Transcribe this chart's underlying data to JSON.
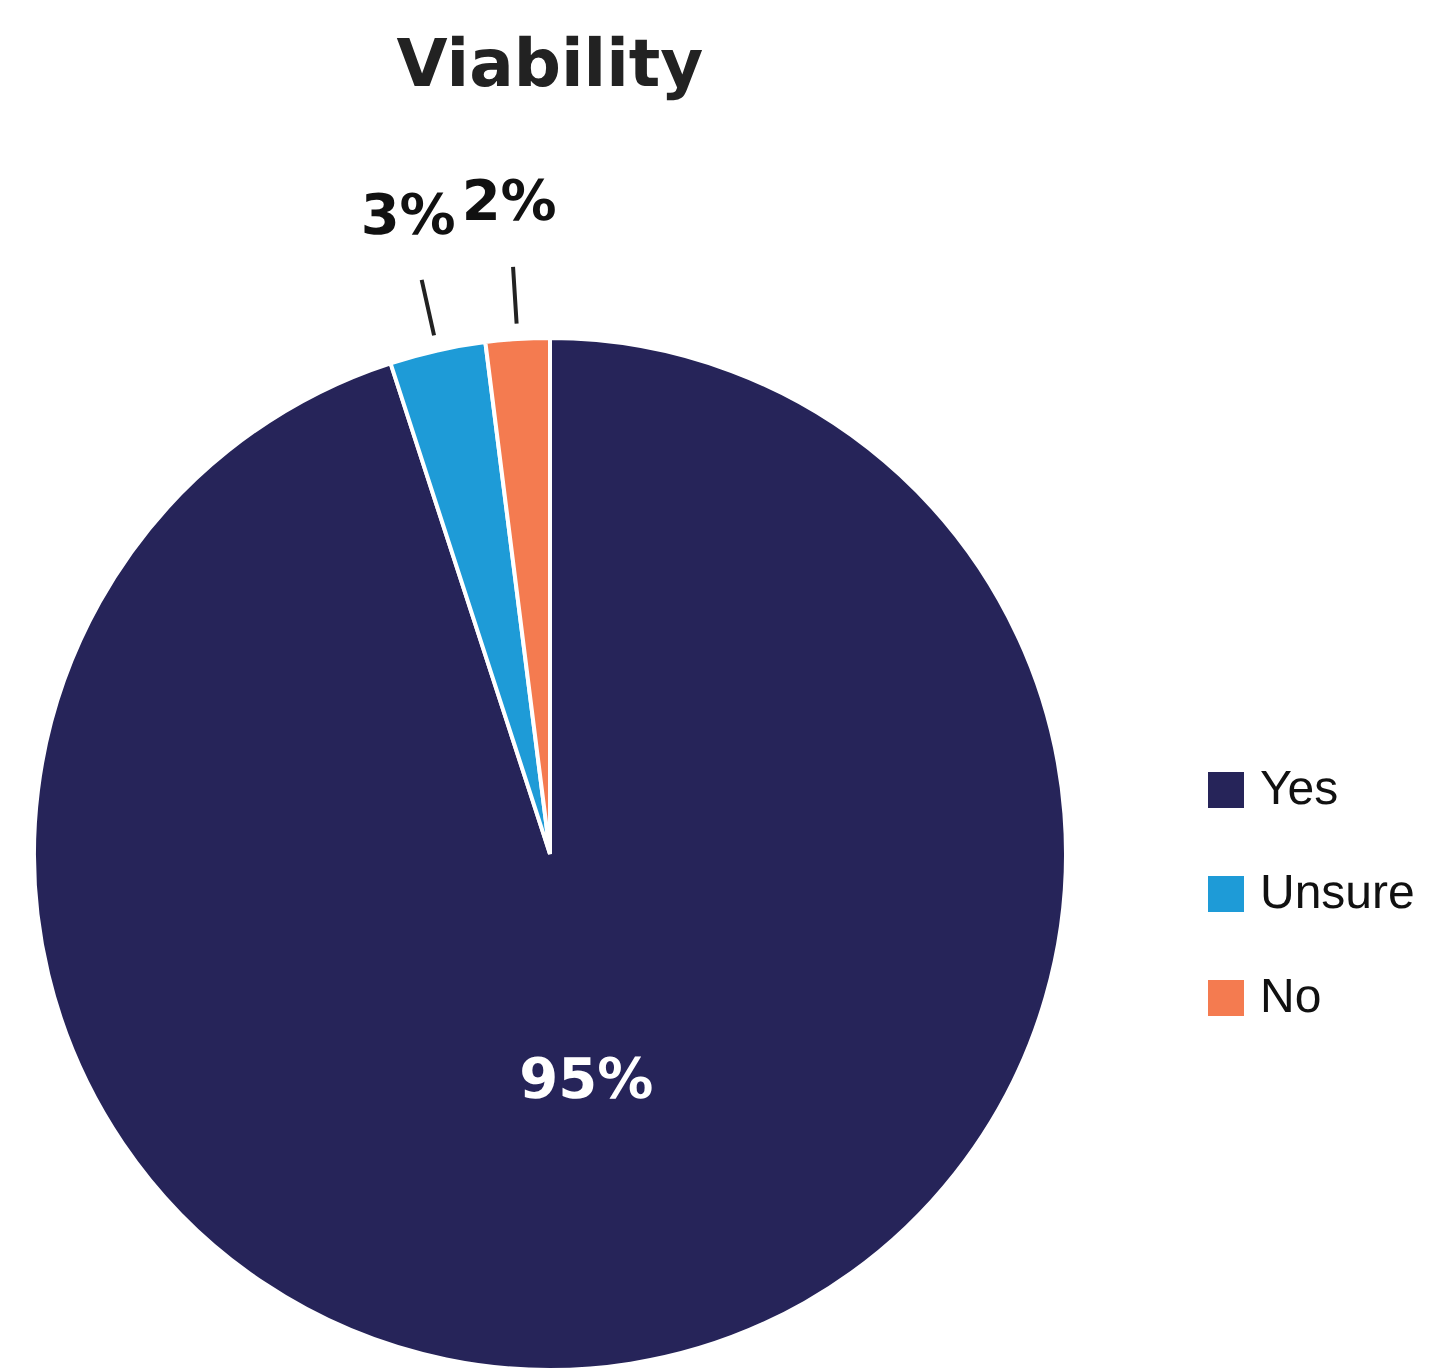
{
  "chart_data": {
    "type": "pie",
    "title": "Viability",
    "categories": [
      "Yes",
      "Unsure",
      "No"
    ],
    "values": [
      95,
      3,
      2
    ],
    "colors": [
      "#262459",
      "#1e9bd7",
      "#f47b50"
    ],
    "value_labels": [
      "95%",
      "3%",
      "2%"
    ],
    "legend": "right"
  }
}
